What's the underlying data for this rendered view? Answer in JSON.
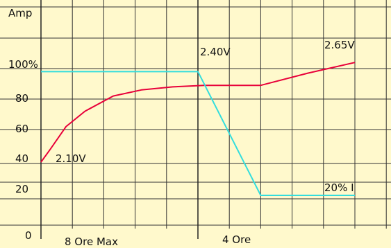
{
  "chart_data": {
    "type": "line",
    "ylabel": "Amp",
    "y_tick_labels": [
      "100%",
      "80",
      "60",
      "40",
      "20",
      "0"
    ],
    "x_labels": [
      "8 Ore Max",
      "4 Ore"
    ],
    "annotations": [
      "2.10V",
      "2.40V",
      "2.65V",
      "20% I"
    ],
    "grid": true,
    "colors": {
      "background": "#fff9cc",
      "grid": "#333333",
      "voltage": "#e8003a",
      "current": "#33dddd"
    },
    "x_range": [
      0,
      10
    ],
    "y_range": [
      0,
      120
    ],
    "series": [
      {
        "color": "#e8003a",
        "points": [
          [
            0,
            40
          ],
          [
            0.3,
            48
          ],
          [
            0.8,
            62
          ],
          [
            1.4,
            72
          ],
          [
            2.3,
            82
          ],
          [
            3.2,
            86
          ],
          [
            4.2,
            88
          ],
          [
            5.2,
            89
          ],
          [
            7.0,
            89
          ],
          [
            8.5,
            97
          ],
          [
            10.0,
            104
          ]
        ]
      },
      {
        "color": "#33dddd",
        "points": [
          [
            0,
            98
          ],
          [
            5.0,
            98
          ],
          [
            7.0,
            20
          ],
          [
            10.0,
            20
          ]
        ]
      }
    ]
  }
}
